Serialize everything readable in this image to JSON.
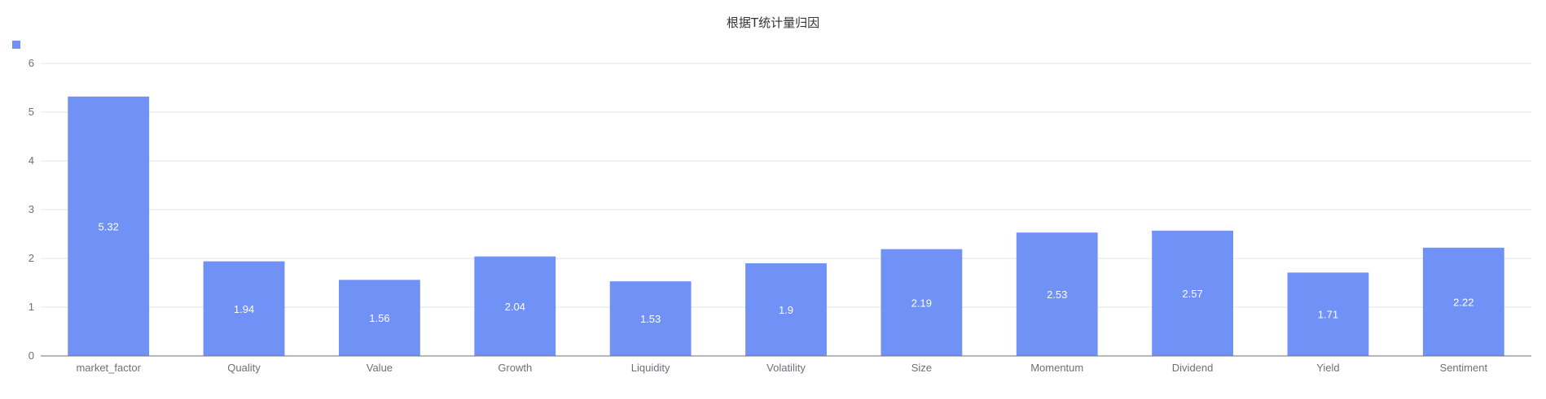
{
  "chart_data": {
    "type": "bar",
    "title": "根据T统计量归因",
    "xlabel": "",
    "ylabel": "",
    "categories": [
      "market_factor",
      "Quality",
      "Value",
      "Growth",
      "Liquidity",
      "Volatility",
      "Size",
      "Momentum",
      "Dividend",
      "Yield",
      "Sentiment"
    ],
    "series": [
      {
        "values": [
          5.32,
          1.94,
          1.56,
          2.04,
          1.53,
          1.9,
          2.19,
          2.53,
          2.57,
          1.71,
          2.22
        ],
        "color": "#7091f5"
      }
    ],
    "ylim": [
      0,
      6
    ],
    "yticks": [
      0,
      1,
      2,
      3,
      4,
      5,
      6
    ],
    "grid": true,
    "legend": "top-left",
    "data_labels": true
  }
}
